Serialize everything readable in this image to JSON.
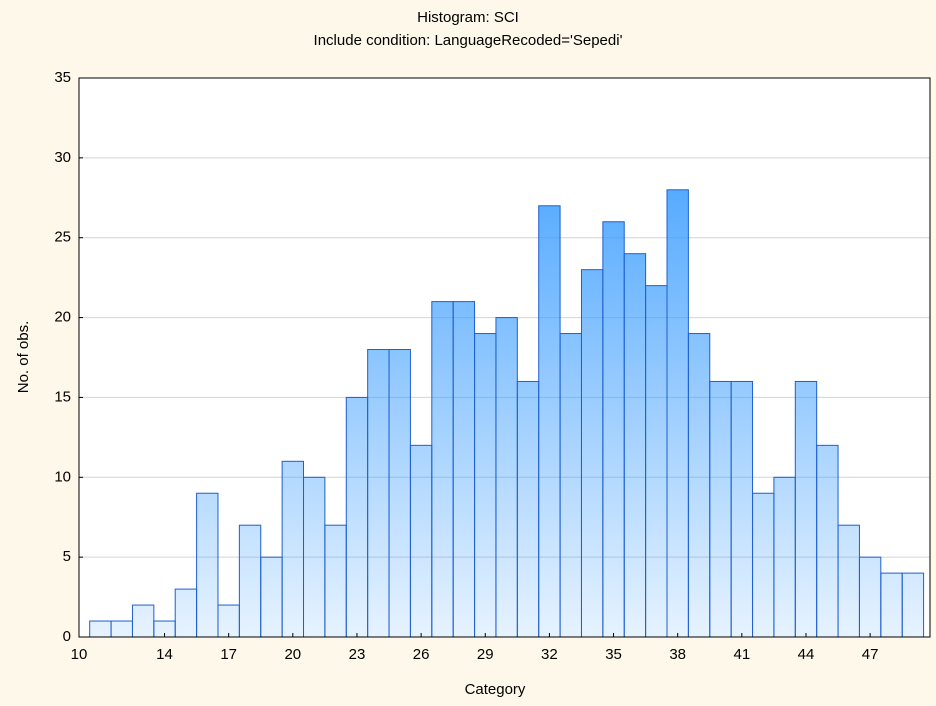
{
  "chart_data": {
    "type": "histogram",
    "title": "Histogram: SCI",
    "subtitle": "Include condition: LanguageRecoded='Sepedi'",
    "x_label": "Category",
    "y_label": "No. of obs.",
    "bins": [
      10.5,
      11.5,
      12.5,
      13.5,
      14.5,
      15.5,
      16.5,
      17.5,
      18.5,
      19.5,
      20.5,
      21.5,
      22.5,
      23.5,
      24.5,
      25.5,
      26.5,
      27.5,
      28.5,
      29.5,
      30.5,
      31.5,
      32.5,
      33.5,
      34.5,
      35.5,
      36.5,
      37.5,
      38.5,
      39.5,
      40.5,
      41.5,
      42.5,
      43.5,
      44.5,
      45.5,
      46.5,
      47.5,
      48.5,
      49.5
    ],
    "values": [
      1,
      1,
      2,
      1,
      3,
      9,
      2,
      7,
      5,
      11,
      10,
      7,
      15,
      18,
      18,
      12,
      21,
      21,
      19,
      20,
      16,
      27,
      19,
      23,
      26,
      24,
      22,
      28,
      19,
      16,
      16,
      9,
      10,
      16,
      12,
      7,
      5,
      4,
      4
    ],
    "color": "#3399ff",
    "edgecolor": "#1f5fcf",
    "xlim": [
      10,
      49.8
    ],
    "xticks": [
      10,
      14,
      17,
      20,
      23,
      26,
      29,
      32,
      35,
      38,
      41,
      44,
      47
    ],
    "ylim": [
      0,
      35
    ],
    "yticks": [
      0,
      5,
      10,
      15,
      20,
      25,
      30,
      35
    ],
    "grid": true
  }
}
